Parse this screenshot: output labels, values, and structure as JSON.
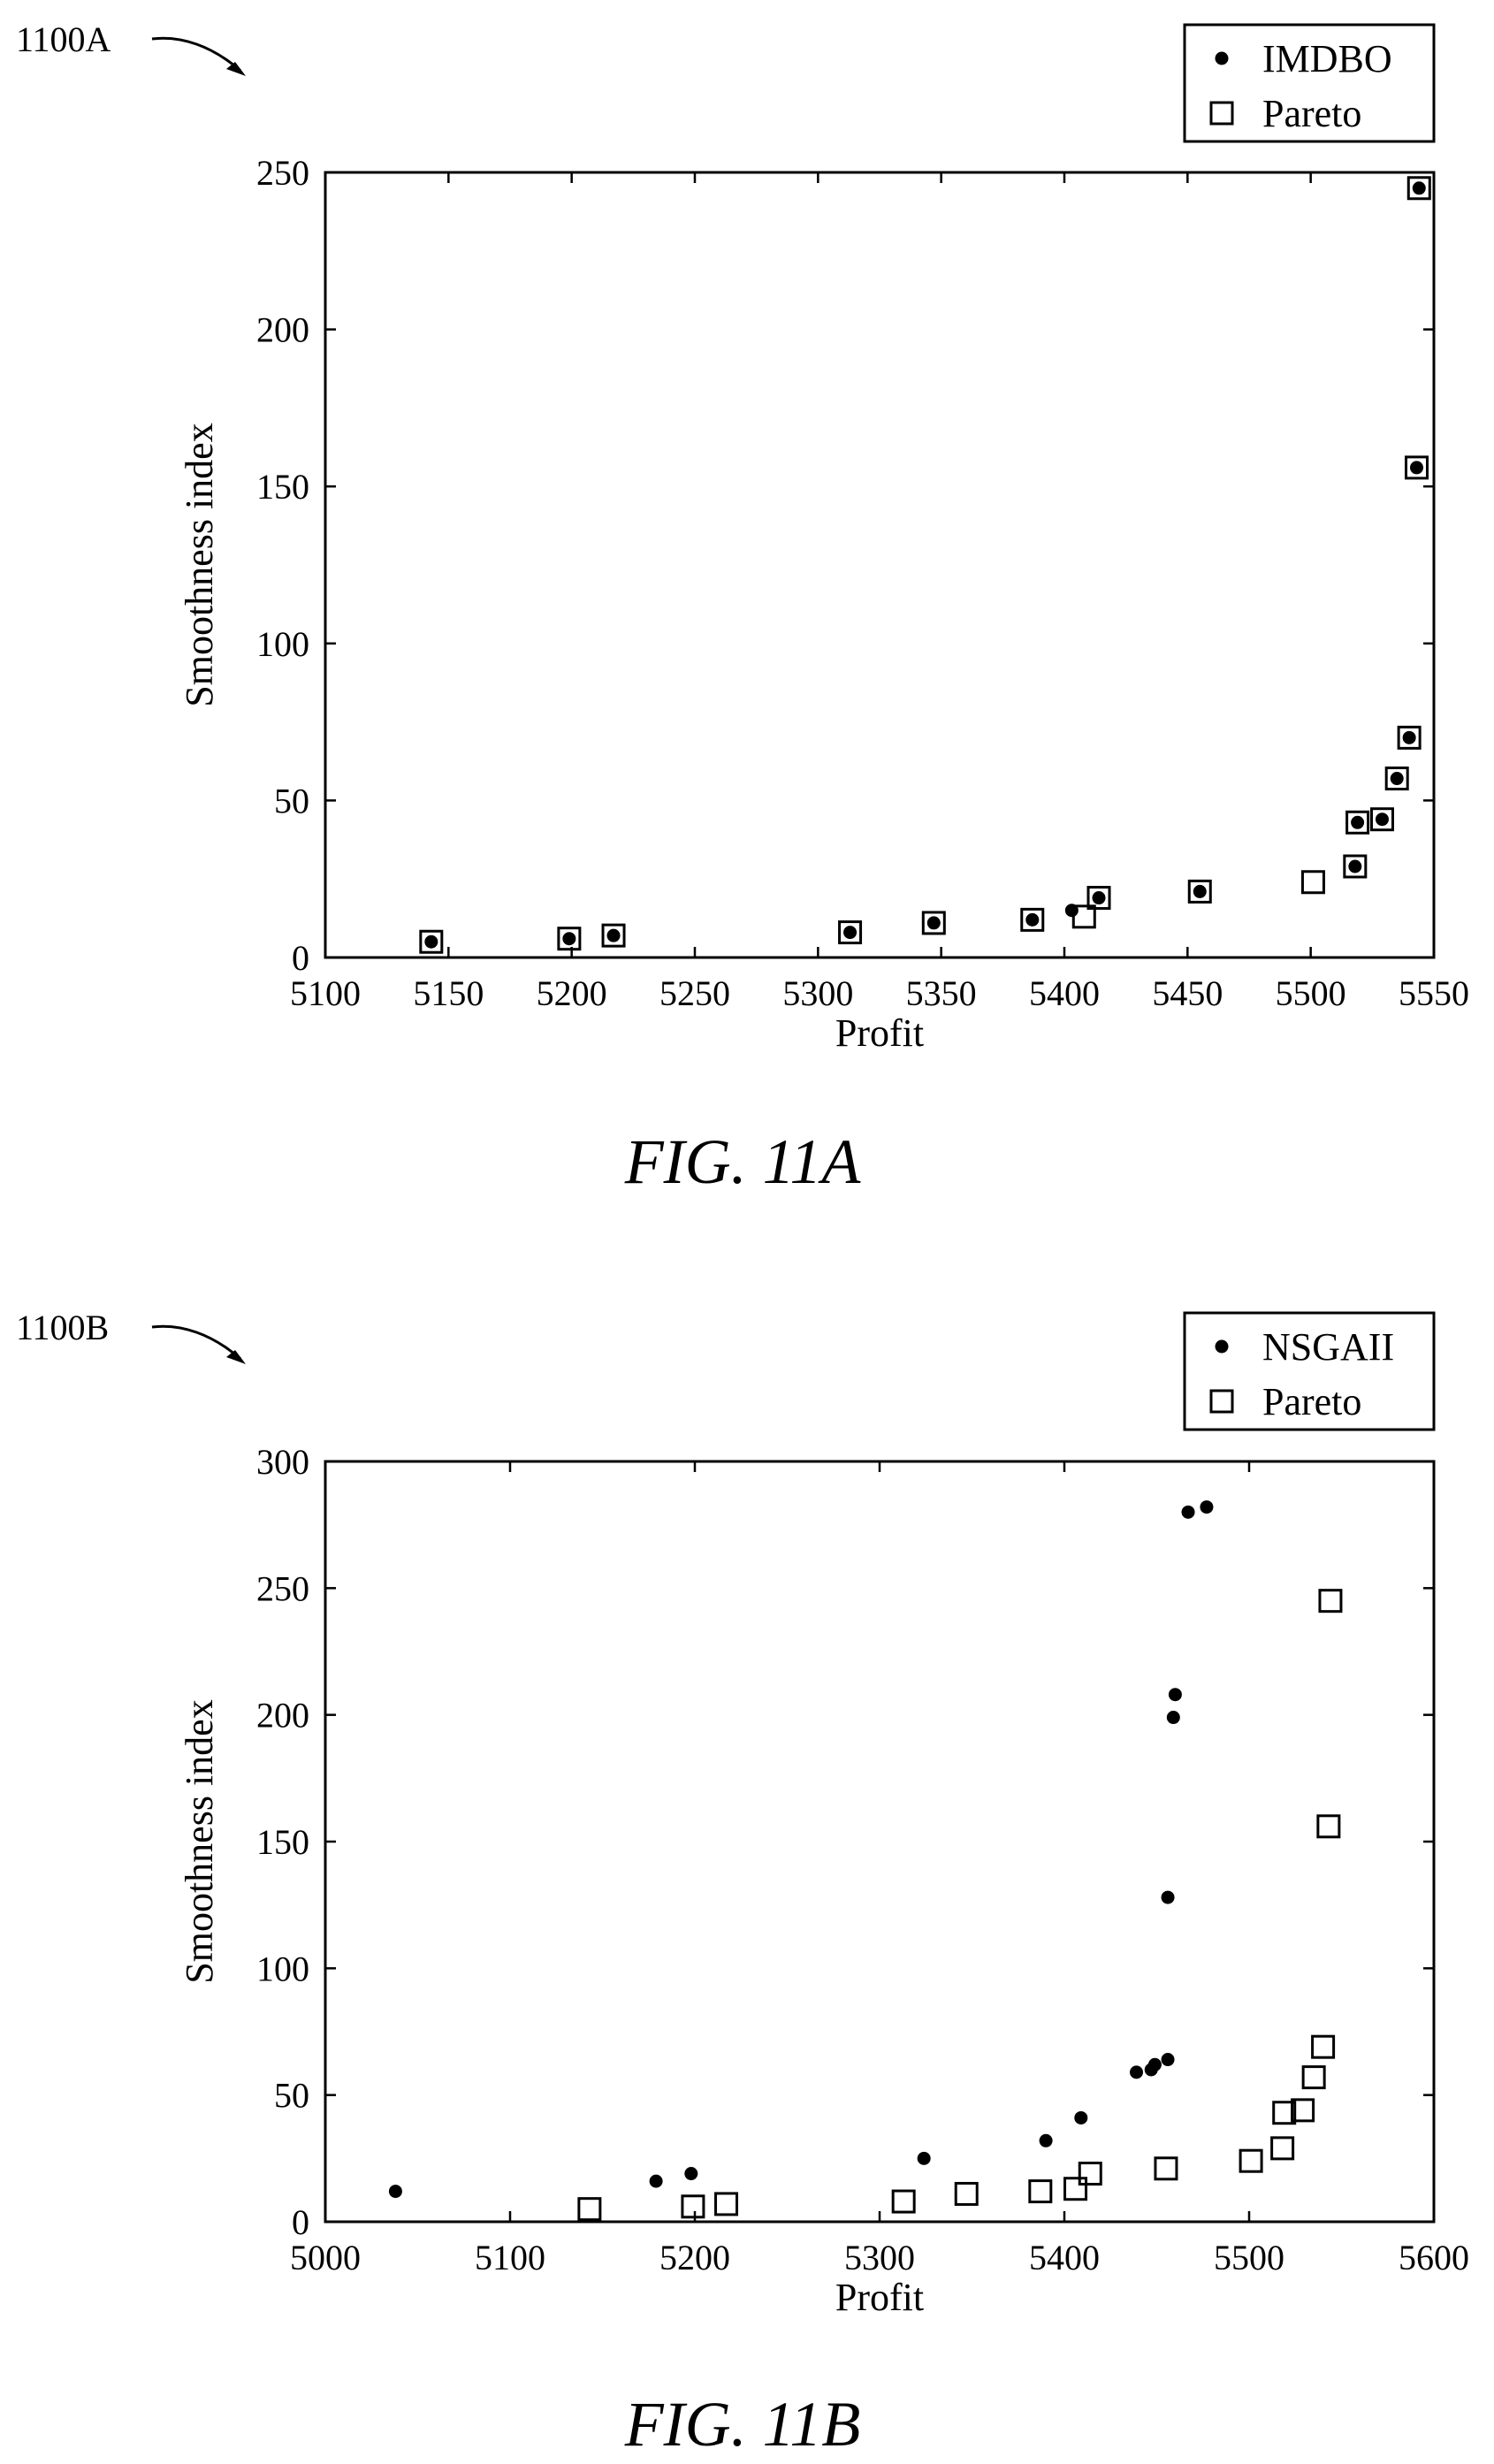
{
  "figures": [
    {
      "ref_label": "1100A",
      "caption": "FIG. 11A"
    },
    {
      "ref_label": "1100B",
      "caption": "FIG. 11B"
    }
  ],
  "chart_data": [
    {
      "type": "scatter",
      "title": "",
      "xlabel": "Profit",
      "ylabel": "Smoothness index",
      "xlim": [
        5100,
        5550
      ],
      "ylim": [
        0,
        250
      ],
      "xticks": [
        "5100",
        "5150",
        "5200",
        "5250",
        "5300",
        "5350",
        "5400",
        "5450",
        "5500",
        "5550"
      ],
      "yticks": [
        "0",
        "50",
        "100",
        "150",
        "200",
        "250"
      ],
      "legend_position": "top-right-outside",
      "grid": false,
      "series": [
        {
          "name": "IMDBO",
          "marker": "dot",
          "points": [
            [
              5143,
              5
            ],
            [
              5199,
              6
            ],
            [
              5217,
              7
            ],
            [
              5313,
              8
            ],
            [
              5347,
              11
            ],
            [
              5387,
              12
            ],
            [
              5403,
              15
            ],
            [
              5414,
              19
            ],
            [
              5455,
              21
            ],
            [
              5518,
              29
            ],
            [
              5519,
              43
            ],
            [
              5529,
              44
            ],
            [
              5535,
              57
            ],
            [
              5540,
              70
            ],
            [
              5543,
              156
            ],
            [
              5544,
              245
            ]
          ]
        },
        {
          "name": "Pareto",
          "marker": "square",
          "points": [
            [
              5143,
              5
            ],
            [
              5199,
              6
            ],
            [
              5217,
              7
            ],
            [
              5313,
              8
            ],
            [
              5347,
              11
            ],
            [
              5387,
              12
            ],
            [
              5408,
              13
            ],
            [
              5414,
              19
            ],
            [
              5455,
              21
            ],
            [
              5501,
              24
            ],
            [
              5518,
              29
            ],
            [
              5519,
              43
            ],
            [
              5529,
              44
            ],
            [
              5535,
              57
            ],
            [
              5540,
              70
            ],
            [
              5543,
              156
            ],
            [
              5544,
              245
            ]
          ]
        }
      ]
    },
    {
      "type": "scatter",
      "title": "",
      "xlabel": "Profit",
      "ylabel": "Smoothness index",
      "xlim": [
        5000,
        5600
      ],
      "ylim": [
        0,
        300
      ],
      "xticks": [
        "5000",
        "5100",
        "5200",
        "5300",
        "5400",
        "5500",
        "5600"
      ],
      "yticks": [
        "0",
        "50",
        "100",
        "150",
        "200",
        "250",
        "300"
      ],
      "legend_position": "top-right-outside",
      "grid": false,
      "series": [
        {
          "name": "NSGAII",
          "marker": "dot",
          "points": [
            [
              5038,
              12
            ],
            [
              5179,
              16
            ],
            [
              5198,
              19
            ],
            [
              5324,
              25
            ],
            [
              5390,
              32
            ],
            [
              5409,
              41
            ],
            [
              5439,
              59
            ],
            [
              5447,
              60
            ],
            [
              5449,
              62
            ],
            [
              5456,
              64
            ],
            [
              5456,
              128
            ],
            [
              5459,
              199
            ],
            [
              5460,
              208
            ],
            [
              5467,
              280
            ],
            [
              5477,
              282
            ]
          ]
        },
        {
          "name": "Pareto",
          "marker": "square",
          "points": [
            [
              5143,
              5
            ],
            [
              5199,
              6
            ],
            [
              5217,
              7
            ],
            [
              5313,
              8
            ],
            [
              5347,
              11
            ],
            [
              5387,
              12
            ],
            [
              5406,
              13
            ],
            [
              5414,
              19
            ],
            [
              5455,
              21
            ],
            [
              5501,
              24
            ],
            [
              5518,
              29
            ],
            [
              5519,
              43
            ],
            [
              5529,
              44
            ],
            [
              5535,
              57
            ],
            [
              5540,
              69
            ],
            [
              5543,
              156
            ],
            [
              5544,
              245
            ]
          ]
        }
      ]
    }
  ]
}
